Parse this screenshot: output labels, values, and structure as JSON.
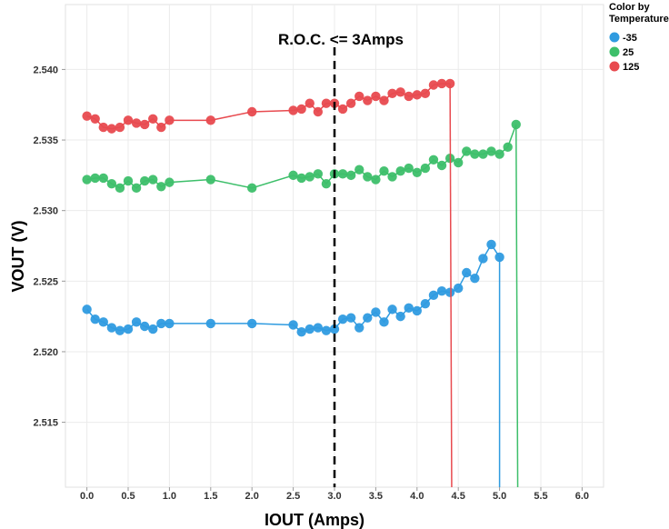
{
  "chart_data": {
    "type": "line",
    "title": "R.O.C. <= 3Amps",
    "xlabel": "IOUT (Amps)",
    "ylabel": "VOUT (V)",
    "xlim": [
      -0.26,
      6.26
    ],
    "ylim": [
      2.5104,
      2.5446
    ],
    "xticks": [
      "0.0",
      "0.5",
      "1.0",
      "1.5",
      "2.0",
      "2.5",
      "3.0",
      "3.5",
      "4.0",
      "4.5",
      "5.0",
      "5.5",
      "6.0"
    ],
    "yticks": [
      "2.515",
      "2.520",
      "2.525",
      "2.530",
      "2.535",
      "2.540"
    ],
    "grid": true,
    "annotation": {
      "type": "vline-dashed",
      "x": 3.0,
      "label": "R.O.C. <= 3Amps"
    },
    "legend": {
      "title": "Color by Temperature",
      "placement": "top-right"
    },
    "series": [
      {
        "name": "-35",
        "color": "#2f9be0",
        "drop_x": 5.0,
        "x": [
          0,
          0.1,
          0.2,
          0.3,
          0.4,
          0.5,
          0.6,
          0.7,
          0.8,
          0.9,
          1.0,
          1.5,
          2.0,
          2.5,
          2.6,
          2.7,
          2.8,
          2.9,
          3.0,
          3.1,
          3.2,
          3.3,
          3.4,
          3.5,
          3.6,
          3.7,
          3.8,
          3.9,
          4.0,
          4.1,
          4.2,
          4.3,
          4.4,
          4.5,
          4.6,
          4.7,
          4.8,
          4.9,
          5.0
        ],
        "y": [
          2.523,
          2.5223,
          2.5221,
          2.5217,
          2.5215,
          2.5216,
          2.5221,
          2.5218,
          2.5216,
          2.522,
          2.522,
          2.522,
          2.522,
          2.5219,
          2.5214,
          2.5216,
          2.5217,
          2.5215,
          2.5216,
          2.5223,
          2.5224,
          2.5217,
          2.5224,
          2.5228,
          2.5221,
          2.523,
          2.5225,
          2.5231,
          2.5229,
          2.5234,
          2.524,
          2.5243,
          2.5242,
          2.5245,
          2.5256,
          2.5252,
          2.5266,
          2.5276,
          2.5267
        ]
      },
      {
        "name": "25",
        "color": "#3dbf6a",
        "drop_x": 5.22,
        "x": [
          0,
          0.1,
          0.2,
          0.3,
          0.4,
          0.5,
          0.6,
          0.7,
          0.8,
          0.9,
          1.0,
          1.5,
          2.0,
          2.5,
          2.6,
          2.7,
          2.8,
          2.9,
          3.0,
          3.1,
          3.2,
          3.3,
          3.4,
          3.5,
          3.6,
          3.7,
          3.8,
          3.9,
          4.0,
          4.1,
          4.2,
          4.3,
          4.4,
          4.5,
          4.6,
          4.7,
          4.8,
          4.9,
          5.0,
          5.1,
          5.2
        ],
        "y": [
          2.5322,
          2.5323,
          2.5323,
          2.5319,
          2.5316,
          2.5321,
          2.5316,
          2.5321,
          2.5322,
          2.5317,
          2.532,
          2.5322,
          2.5316,
          2.5325,
          2.5323,
          2.5324,
          2.5326,
          2.5319,
          2.5326,
          2.5326,
          2.5325,
          2.5329,
          2.5324,
          2.5322,
          2.5328,
          2.5324,
          2.5328,
          2.533,
          2.5327,
          2.533,
          2.5336,
          2.5332,
          2.5337,
          2.5334,
          2.5342,
          2.534,
          2.534,
          2.5342,
          2.534,
          2.5345,
          2.5361
        ]
      },
      {
        "name": "125",
        "color": "#e84a4f",
        "drop_x": 4.42,
        "x": [
          0,
          0.1,
          0.2,
          0.3,
          0.4,
          0.5,
          0.6,
          0.7,
          0.8,
          0.9,
          1.0,
          1.5,
          2.0,
          2.5,
          2.6,
          2.7,
          2.8,
          2.9,
          3.0,
          3.1,
          3.2,
          3.3,
          3.4,
          3.5,
          3.6,
          3.7,
          3.8,
          3.9,
          4.0,
          4.1,
          4.2,
          4.3,
          4.4
        ],
        "y": [
          2.5367,
          2.5365,
          2.5359,
          2.5358,
          2.5359,
          2.5364,
          2.5362,
          2.5361,
          2.5365,
          2.5359,
          2.5364,
          2.5364,
          2.537,
          2.5371,
          2.5372,
          2.5376,
          2.537,
          2.5376,
          2.5376,
          2.5372,
          2.5376,
          2.5381,
          2.5378,
          2.5381,
          2.5378,
          2.5383,
          2.5384,
          2.5381,
          2.5382,
          2.5383,
          2.5389,
          2.539,
          2.539
        ]
      }
    ]
  }
}
